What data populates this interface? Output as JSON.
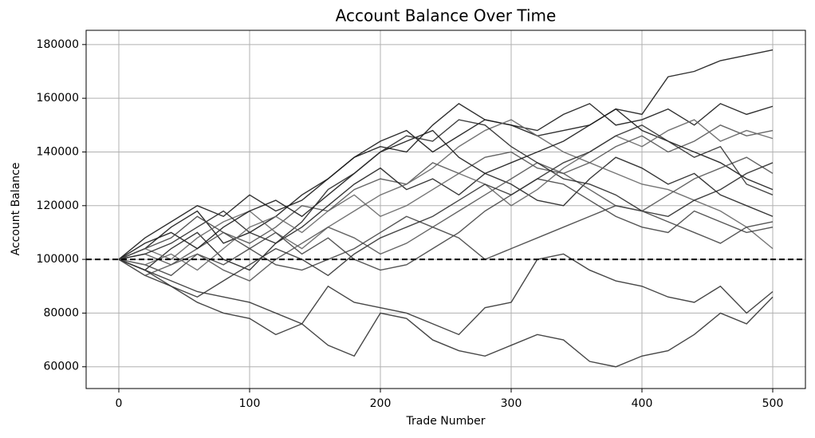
{
  "chart_data": {
    "type": "line",
    "title": "Account Balance Over Time",
    "x_label": "Trade Number",
    "y_label": "Account Balance",
    "x": [
      0,
      20,
      40,
      60,
      80,
      100,
      120,
      140,
      160,
      180,
      200,
      220,
      240,
      260,
      280,
      300,
      320,
      340,
      360,
      380,
      400,
      420,
      440,
      460,
      480,
      500
    ],
    "series": [
      {
        "color": "#1a1a1a",
        "values": [
          100000,
          104000,
          112000,
          118000,
          106000,
          110000,
          116000,
          124000,
          130000,
          138000,
          142000,
          140000,
          150000,
          158000,
          152000,
          150000,
          146000,
          148000,
          150000,
          156000,
          154000,
          168000,
          170000,
          174000,
          176000,
          178000
        ]
      },
      {
        "color": "#333333",
        "values": [
          100000,
          94000,
          90000,
          84000,
          80000,
          78000,
          72000,
          76000,
          68000,
          64000,
          80000,
          78000,
          70000,
          66000,
          64000,
          68000,
          72000,
          70000,
          62000,
          60000,
          64000,
          66000,
          72000,
          80000,
          76000,
          86000
        ]
      },
      {
        "color": "#333333",
        "values": [
          100000,
          96000,
          92000,
          88000,
          86000,
          84000,
          80000,
          76000,
          90000,
          84000,
          82000,
          80000,
          76000,
          72000,
          82000,
          84000,
          100000,
          102000,
          96000,
          92000,
          90000,
          86000,
          84000,
          90000,
          80000,
          88000
        ]
      },
      {
        "color": "#1a1a1a",
        "values": [
          100000,
          108000,
          114000,
          120000,
          116000,
          124000,
          118000,
          122000,
          130000,
          138000,
          144000,
          148000,
          140000,
          146000,
          152000,
          150000,
          148000,
          154000,
          158000,
          150000,
          152000,
          156000,
          150000,
          158000,
          154000,
          157000
        ]
      },
      {
        "color": "#555555",
        "values": [
          100000,
          102000,
          98000,
          104000,
          110000,
          106000,
          112000,
          120000,
          118000,
          126000,
          130000,
          128000,
          136000,
          132000,
          138000,
          140000,
          134000,
          132000,
          136000,
          142000,
          146000,
          140000,
          144000,
          150000,
          146000,
          148000
        ]
      },
      {
        "color": "#222222",
        "values": [
          100000,
          96000,
          104000,
          110000,
          100000,
          96000,
          106000,
          112000,
          120000,
          128000,
          134000,
          126000,
          130000,
          124000,
          132000,
          128000,
          122000,
          120000,
          130000,
          138000,
          134000,
          128000,
          132000,
          124000,
          120000,
          116000
        ]
      },
      {
        "color": "#666666",
        "values": [
          100000,
          104000,
          100000,
          108000,
          114000,
          118000,
          110000,
          104000,
          112000,
          118000,
          124000,
          128000,
          134000,
          142000,
          148000,
          152000,
          146000,
          140000,
          136000,
          132000,
          128000,
          126000,
          122000,
          118000,
          112000,
          104000
        ]
      },
      {
        "color": "#444444",
        "values": [
          100000,
          98000,
          94000,
          102000,
          98000,
          104000,
          110000,
          102000,
          108000,
          100000,
          96000,
          98000,
          104000,
          110000,
          118000,
          124000,
          130000,
          128000,
          122000,
          116000,
          112000,
          110000,
          118000,
          114000,
          110000,
          112000
        ]
      },
      {
        "color": "#1a1a1a",
        "values": [
          100000,
          106000,
          110000,
          104000,
          112000,
          118000,
          122000,
          116000,
          124000,
          132000,
          140000,
          144000,
          148000,
          138000,
          132000,
          136000,
          140000,
          144000,
          150000,
          156000,
          148000,
          144000,
          140000,
          136000,
          130000,
          126000
        ]
      },
      {
        "color": "#555555",
        "values": [
          100000,
          94000,
          98000,
          102000,
          96000,
          92000,
          100000,
          106000,
          112000,
          108000,
          102000,
          106000,
          112000,
          118000,
          124000,
          130000,
          136000,
          132000,
          126000,
          120000,
          118000,
          124000,
          130000,
          134000,
          138000,
          132000
        ]
      },
      {
        "color": "#2a2a2a",
        "values": [
          100000,
          102000,
          106000,
          112000,
          118000,
          110000,
          106000,
          114000,
          126000,
          132000,
          140000,
          146000,
          144000,
          152000,
          150000,
          142000,
          136000,
          130000,
          128000,
          124000,
          118000,
          116000,
          122000,
          126000,
          132000,
          136000
        ]
      },
      {
        "color": "#666666",
        "values": [
          100000,
          98000,
          102000,
          96000,
          104000,
          112000,
          116000,
          110000,
          118000,
          124000,
          116000,
          120000,
          126000,
          132000,
          128000,
          120000,
          126000,
          134000,
          140000,
          146000,
          142000,
          148000,
          152000,
          144000,
          148000,
          145000
        ]
      },
      {
        "color": "#444444",
        "values": [
          100000,
          104000,
          108000,
          116000,
          110000,
          104000,
          98000,
          96000,
          100000,
          104000,
          110000,
          116000,
          112000,
          108000,
          100000,
          104000,
          108000,
          112000,
          116000,
          120000,
          118000,
          114000,
          110000,
          106000,
          112000,
          114000
        ]
      },
      {
        "color": "#333333",
        "values": [
          100000,
          96000,
          90000,
          86000,
          92000,
          98000,
          104000,
          100000,
          94000,
          102000,
          108000,
          112000,
          116000,
          122000,
          128000,
          124000,
          130000,
          136000,
          140000,
          146000,
          150000,
          144000,
          138000,
          142000,
          128000,
          124000
        ]
      }
    ],
    "hline": 100000,
    "xlim": [
      -25,
      525
    ],
    "ylim": [
      51900,
      185300
    ],
    "xticks": [
      0,
      100,
      200,
      300,
      400,
      500
    ],
    "yticks": [
      60000,
      80000,
      100000,
      120000,
      140000,
      160000,
      180000
    ],
    "grid": true
  }
}
